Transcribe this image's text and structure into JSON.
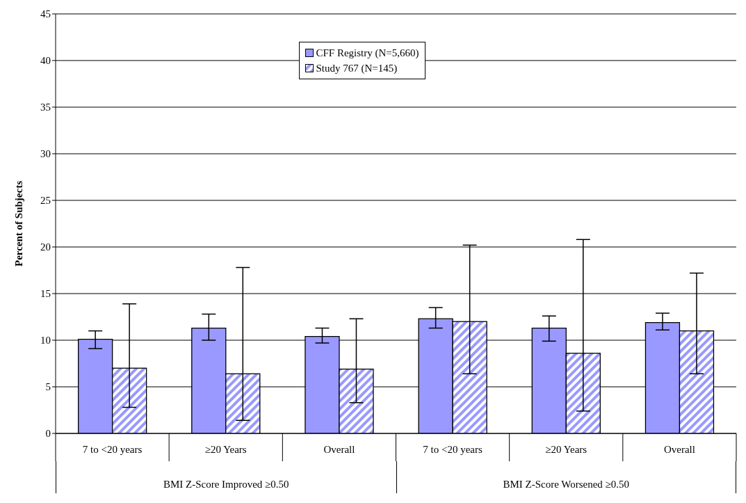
{
  "chart_data": {
    "type": "bar",
    "ylabel": "Percent of Subjects",
    "categories": [
      "7 to <20 years",
      "≥20 Years",
      "Overall",
      "7 to <20 years",
      "≥20 Years",
      "Overall"
    ],
    "series": [
      {
        "name": "CFF Registry (N=5,660)",
        "color": "#9999ff",
        "values": [
          10.1,
          11.3,
          10.4,
          12.3,
          11.3,
          11.9
        ],
        "errors": [
          [
            9.1,
            11.0
          ],
          [
            10.0,
            12.8
          ],
          [
            9.7,
            11.3
          ],
          [
            11.3,
            13.5
          ],
          [
            9.9,
            12.6
          ],
          [
            11.1,
            12.9
          ]
        ]
      },
      {
        "name": "Study 767 (N=145)",
        "color": "#9999ff",
        "values": [
          7.0,
          6.4,
          6.9,
          12.0,
          8.6,
          11.0
        ],
        "errors": [
          [
            2.8,
            13.9
          ],
          [
            1.4,
            17.8
          ],
          [
            3.3,
            12.3
          ],
          [
            6.4,
            20.2
          ],
          [
            2.4,
            20.8
          ],
          [
            6.4,
            17.2
          ]
        ]
      }
    ],
    "annotations": [
      "BMI Z-Score Improved ≥0.50",
      "BMI Z-Score Worsened ≥0.50"
    ],
    "ylim": [
      0,
      45
    ],
    "yticks": [
      0,
      5,
      10,
      15,
      20,
      25,
      30,
      35,
      40,
      45
    ],
    "grid": "y",
    "legend": "top"
  }
}
